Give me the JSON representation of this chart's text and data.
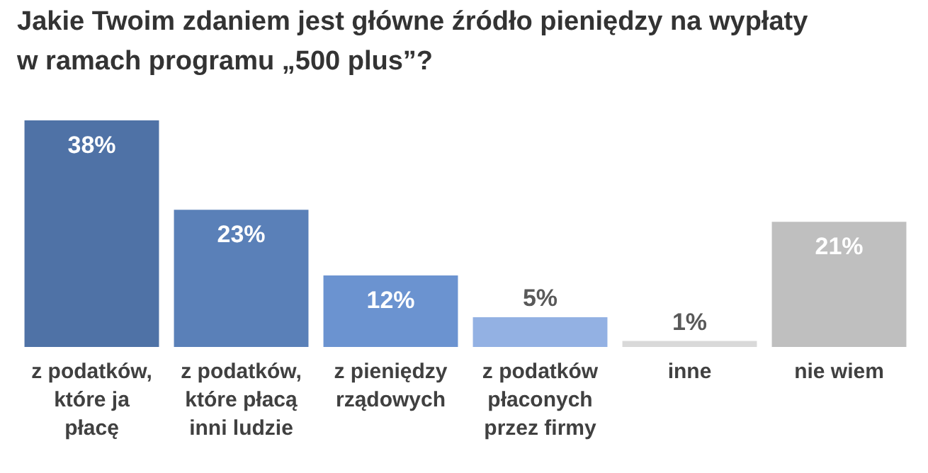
{
  "chart_data": {
    "type": "bar",
    "title": "Jakie Twoim zdaniem jest główne źródło pieniędzy na wypłaty w ramach programu „500 plus”?",
    "categories": [
      "z podatków, które ja płacę",
      "z podatków, które płacą inni ludzie",
      "z pieniędzy rządowych",
      "z podatków płaconych przez firmy",
      "inne",
      "nie wiem"
    ],
    "values": [
      38,
      23,
      12,
      5,
      1,
      21
    ],
    "colors": [
      "#4f72a6",
      "#5a80b8",
      "#6b93d0",
      "#93b1e3",
      "#d9d9d9",
      "#bfbfbf"
    ],
    "value_labels": [
      "38%",
      "23%",
      "12%",
      "5%",
      "1%",
      "21%"
    ],
    "grid": false
  }
}
